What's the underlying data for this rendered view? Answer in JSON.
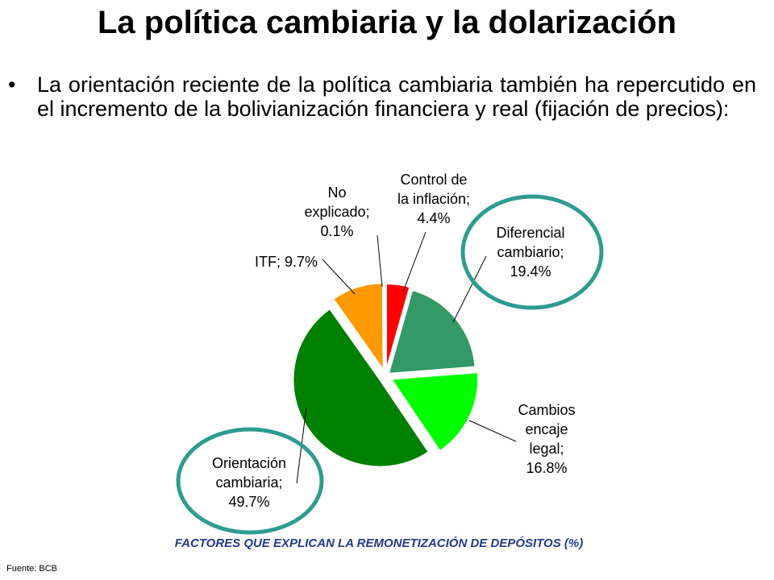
{
  "slide": {
    "title": "La política cambiaria y la dolarización",
    "bullet": "La orientación reciente de la política cambiaria también ha repercutido en el incremento de la bolivianización financiera y real (fijación de precios):",
    "caption": "FACTORES QUE EXPLICAN LA REMONETIZACIÓN DE DEPÓSITOS (%)",
    "source": "Fuente: BCB"
  },
  "chart_data": {
    "type": "pie",
    "title": "FACTORES QUE EXPLICAN LA REMONETIZACIÓN DE DEPÓSITOS (%)",
    "slices": [
      {
        "name": "Control de la inflación",
        "value": 4.4,
        "label_lines": [
          "Control de",
          "la inflación;",
          "4.4%"
        ],
        "color": "#ff0000"
      },
      {
        "name": "Diferencial cambiario",
        "value": 19.4,
        "label_lines": [
          "Diferencial",
          "cambiario;",
          "19.4%"
        ],
        "color": "#339966",
        "highlighted": true
      },
      {
        "name": "Cambios encaje legal",
        "value": 16.8,
        "label_lines": [
          "Cambios",
          "encaje",
          "legal;",
          "16.8%"
        ],
        "color": "#00ff00"
      },
      {
        "name": "Orientación cambiaria",
        "value": 49.7,
        "label_lines": [
          "Orientación",
          "cambiaria;",
          "49.7%"
        ],
        "color": "#008000",
        "highlighted": true
      },
      {
        "name": "ITF",
        "value": 9.7,
        "label_lines": [
          "ITF; 9.7%"
        ],
        "color": "#ff9900"
      },
      {
        "name": "No explicado",
        "value": 0.1,
        "label_lines": [
          "No",
          "explicado;",
          "0.1%"
        ],
        "color": "#ffff00"
      }
    ],
    "highlight_color": "#2e9c8f"
  }
}
